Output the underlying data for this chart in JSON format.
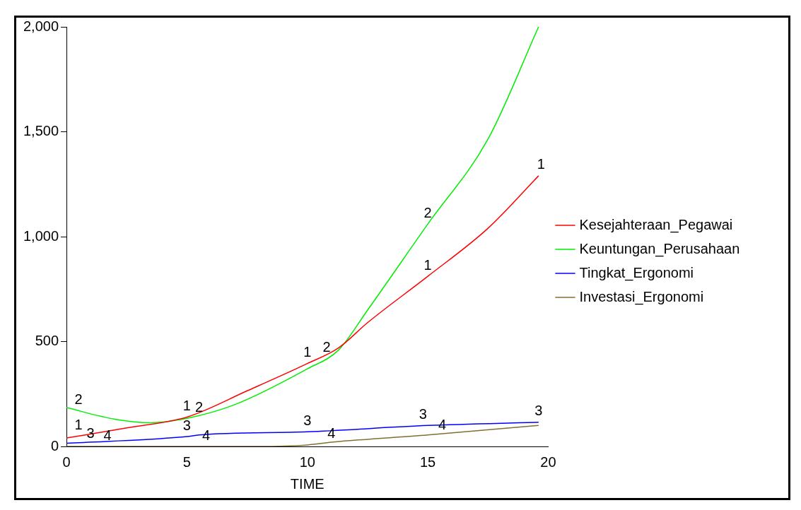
{
  "chart_data": {
    "type": "line",
    "xlabel": "TIME",
    "xlim": [
      0,
      20
    ],
    "xticks": [
      0,
      5,
      10,
      15,
      20
    ],
    "ylim": [
      0,
      2000
    ],
    "yticks": [
      0,
      {
        "value": 500,
        "label": "500"
      },
      {
        "value": 1000,
        "label": "1,000"
      },
      {
        "value": 1500,
        "label": "1,500"
      },
      {
        "value": 2000,
        "label": "2,000"
      }
    ],
    "grid": false,
    "legend": "right",
    "marker": "none",
    "line_style": "solid",
    "series": [
      {
        "name": "Kesejahteraan_Pegawai",
        "color": "#ff0000",
        "x": [
          0,
          2.5,
          5,
          7.5,
          10,
          11.3,
          12.5,
          15,
          17.5,
          19.6
        ],
        "values": [
          40,
          88,
          140,
          265,
          395,
          470,
          590,
          811,
          1040,
          1290
        ]
      },
      {
        "name": "Keuntungan_Perusahaan",
        "color": "#00ee00",
        "x": [
          0,
          2,
          3.5,
          5,
          7,
          10,
          11.3,
          12.5,
          15,
          17.5,
          19.6
        ],
        "values": [
          185,
          130,
          113,
          134,
          200,
          370,
          460,
          650,
          1060,
          1465,
          2000
        ]
      },
      {
        "name": "Tingkat_Ergonomi",
        "color": "#0000ff",
        "x": [
          0,
          5,
          5.5,
          10,
          15,
          19.6
        ],
        "values": [
          15,
          47,
          55,
          70,
          100,
          115
        ]
      },
      {
        "name": "Investasi_Ergonomi",
        "color": "#807030",
        "x": [
          0,
          8,
          10,
          11,
          15,
          19.6
        ],
        "values": [
          0,
          0,
          7,
          20,
          55,
          100
        ]
      }
    ],
    "annotations": [
      {
        "text": "1",
        "x": 0.5,
        "y": 50
      },
      {
        "text": "1",
        "x": 5,
        "y": 140
      },
      {
        "text": "1",
        "x": 10,
        "y": 395
      },
      {
        "text": "1",
        "x": 15,
        "y": 811
      },
      {
        "text": "1",
        "x": 19.7,
        "y": 1290
      },
      {
        "text": "2",
        "x": 0.5,
        "y": 171
      },
      {
        "text": "2",
        "x": 5.5,
        "y": 134
      },
      {
        "text": "2",
        "x": 10.8,
        "y": 420
      },
      {
        "text": "2",
        "x": 15,
        "y": 1060
      },
      {
        "text": "3",
        "x": 1,
        "y": 10
      },
      {
        "text": "3",
        "x": 5,
        "y": 47
      },
      {
        "text": "3",
        "x": 10,
        "y": 70
      },
      {
        "text": "3",
        "x": 14.8,
        "y": 100
      },
      {
        "text": "3",
        "x": 19.6,
        "y": 115
      },
      {
        "text": "4",
        "x": 1.7,
        "y": 0
      },
      {
        "text": "4",
        "x": 5.8,
        "y": 0
      },
      {
        "text": "4",
        "x": 11,
        "y": 10
      },
      {
        "text": "4",
        "x": 15.6,
        "y": 50
      }
    ]
  }
}
